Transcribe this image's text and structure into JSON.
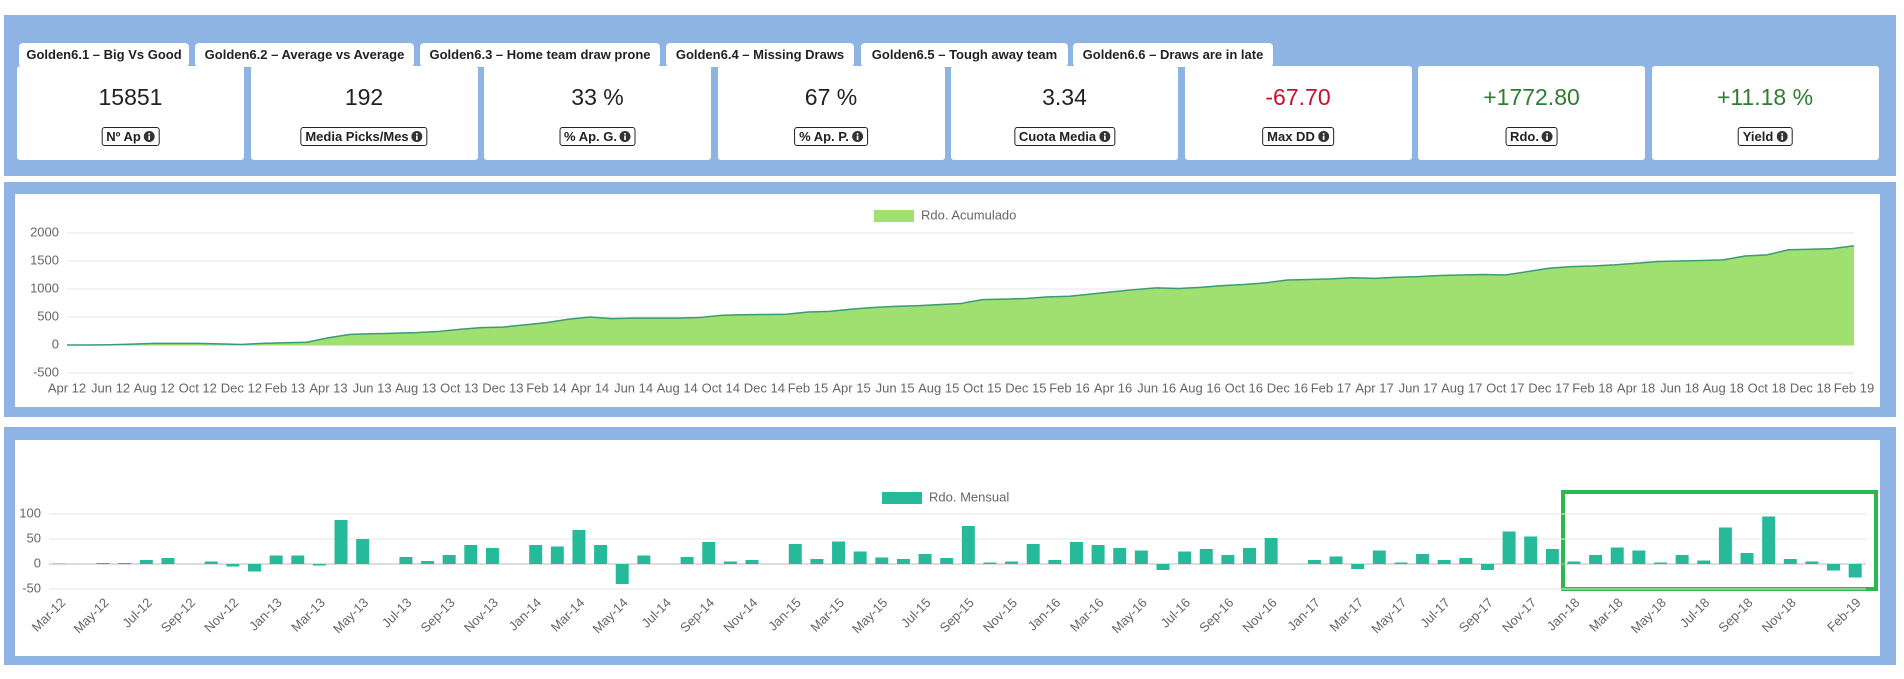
{
  "tabs": [
    "Golden6.1 – Big Vs Good",
    "Golden6.2 – Average vs Average",
    "Golden6.3 – Home team draw prone",
    "Golden6.4 – Missing Draws",
    "Golden6.5 – Tough away team",
    "Golden6.6 – Draws are in late"
  ],
  "kpis": [
    {
      "value": "15851",
      "label": "Nº Ap",
      "color": "#222222"
    },
    {
      "value": "192",
      "label": "Media Picks/Mes",
      "color": "#222222"
    },
    {
      "value": "33 %",
      "label": "% Ap. G.",
      "color": "#222222"
    },
    {
      "value": "67 %",
      "label": "% Ap. P.",
      "color": "#222222"
    },
    {
      "value": "3.34",
      "label": "Cuota Media",
      "color": "#222222"
    },
    {
      "value": "-67.70",
      "label": "Max DD",
      "color": "#c8102e"
    },
    {
      "value": "+1772.80",
      "label": "Rdo.",
      "color": "#2e7d32"
    },
    {
      "value": "+11.18 %",
      "label": "Yield",
      "color": "#2e7d32"
    }
  ],
  "chart_data": [
    {
      "type": "area",
      "categories": [
        "Apr 12",
        null,
        "Jun 12",
        null,
        "Aug 12",
        null,
        "Oct 12",
        null,
        "Dec 12",
        null,
        "Feb 13",
        null,
        "Apr 13",
        null,
        "Jun 13",
        null,
        "Aug 13",
        null,
        "Oct 13",
        null,
        "Dec 13",
        null,
        "Feb 14",
        null,
        "Apr 14",
        null,
        "Jun 14",
        null,
        "Aug 14",
        null,
        "Oct 14",
        null,
        "Dec 14",
        null,
        "Feb 15",
        null,
        "Apr 15",
        null,
        "Jun 15",
        null,
        "Aug 15",
        null,
        "Oct 15",
        null,
        "Dec 15",
        null,
        "Feb 16",
        null,
        "Apr 16",
        null,
        "Jun 16",
        null,
        "Aug 16",
        null,
        "Oct 16",
        null,
        "Dec 16",
        null,
        "Feb 17",
        null,
        "Apr 17",
        null,
        "Jun 17",
        null,
        "Aug 17",
        null,
        "Oct 17",
        null,
        "Dec 17",
        null,
        "Feb 18",
        null,
        "Apr 18",
        null,
        "Jun 18",
        null,
        "Aug 18",
        null,
        "Oct 18",
        null,
        "Dec 18",
        null,
        "Feb 19"
      ],
      "series": [
        {
          "name": "Rdo. Acumulado",
          "color": "#a0e070",
          "line_color": "#3a9a7a",
          "values": [
            0,
            0,
            5,
            15,
            30,
            30,
            30,
            20,
            10,
            30,
            40,
            50,
            130,
            190,
            200,
            210,
            220,
            240,
            280,
            310,
            320,
            360,
            400,
            460,
            500,
            470,
            480,
            480,
            480,
            490,
            530,
            540,
            545,
            550,
            590,
            600,
            640,
            670,
            690,
            700,
            720,
            740,
            810,
            820,
            830,
            860,
            870,
            910,
            950,
            990,
            1020,
            1010,
            1030,
            1060,
            1080,
            1110,
            1160,
            1170,
            1180,
            1200,
            1190,
            1210,
            1220,
            1240,
            1250,
            1260,
            1250,
            1310,
            1370,
            1400,
            1410,
            1430,
            1460,
            1490,
            1500,
            1510,
            1520,
            1590,
            1610,
            1700,
            1710,
            1720,
            1772.8
          ]
        }
      ],
      "ylim": [
        -500,
        2000
      ],
      "yticks": [
        -500,
        0,
        500,
        1000,
        1500,
        2000
      ],
      "grid": true
    },
    {
      "type": "bar",
      "categories": [
        "Mar-12",
        null,
        "May-12",
        null,
        "Jul-12",
        null,
        "Sep-12",
        null,
        "Nov-12",
        null,
        "Jan-13",
        null,
        "Mar-13",
        null,
        "May-13",
        null,
        "Jul-13",
        null,
        "Sep-13",
        null,
        "Nov-13",
        null,
        "Jan-14",
        null,
        "Mar-14",
        null,
        "May-14",
        null,
        "Jul-14",
        null,
        "Sep-14",
        null,
        "Nov-14",
        null,
        "Jan-15",
        null,
        "Mar-15",
        null,
        "May-15",
        null,
        "Jul-15",
        null,
        "Sep-15",
        null,
        "Nov-15",
        null,
        "Jan-16",
        null,
        "Mar-16",
        null,
        "May-16",
        null,
        "Jul-16",
        null,
        "Sep-16",
        null,
        "Nov-16",
        null,
        "Jan-17",
        null,
        "Mar-17",
        null,
        "May-17",
        null,
        "Jul-17",
        null,
        "Sep-17",
        null,
        "Nov-17",
        null,
        "Jan-18",
        null,
        "Mar-18",
        null,
        "May-18",
        null,
        "Jul-18",
        null,
        "Sep-18",
        null,
        "Nov-18",
        null,
        null,
        "Feb-19"
      ],
      "series": [
        {
          "name": "Rdo. Mensual",
          "color": "#26b99a",
          "values": [
            1,
            0,
            2,
            2,
            8,
            12,
            0,
            5,
            -5,
            -15,
            17,
            17,
            -3,
            88,
            50,
            0,
            14,
            6,
            18,
            38,
            32,
            0,
            38,
            35,
            68,
            38,
            -40,
            17,
            0,
            14,
            44,
            5,
            8,
            0,
            40,
            10,
            45,
            25,
            13,
            10,
            20,
            12,
            76,
            3,
            5,
            40,
            8,
            44,
            38,
            32,
            27,
            -12,
            25,
            30,
            18,
            32,
            52,
            0,
            8,
            15,
            -10,
            27,
            3,
            20,
            8,
            12,
            -12,
            65,
            55,
            30,
            5,
            18,
            33,
            27,
            3,
            18,
            7,
            73,
            22,
            95,
            10,
            5,
            -13,
            -27
          ]
        }
      ],
      "ylim": [
        -50,
        100
      ],
      "yticks": [
        -50,
        0,
        50,
        100
      ],
      "grid": true
    }
  ]
}
